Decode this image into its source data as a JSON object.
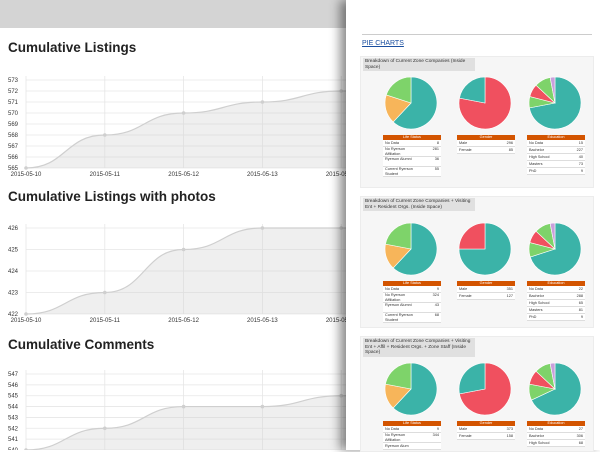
{
  "left_page": {
    "charts": [
      {
        "title": "Cumulative Listings",
        "chart_data": {
          "type": "line",
          "x": [
            "2015-05-10",
            "2015-05-11",
            "2015-05-12",
            "2015-05-13",
            "2015-05-14",
            "2015-05-15"
          ],
          "series": [
            {
              "values": [
                565,
                568,
                570,
                571,
                572,
                572
              ]
            }
          ],
          "xtick_labels": [
            "2015-05-10",
            "2015-05-11",
            "2015-05-12",
            "2015-05-13",
            "2015-05-14"
          ],
          "yticks": [
            "573",
            "572",
            "571",
            "570",
            "569",
            "568",
            "567",
            "566",
            "565"
          ],
          "ylim": [
            565,
            573
          ],
          "grid": true
        }
      },
      {
        "title": "Cumulative Listings with photos",
        "chart_data": {
          "type": "line",
          "x": [
            "2015-05-10",
            "2015-05-11",
            "2015-05-12",
            "2015-05-13",
            "2015-05-14",
            "2015-05-15"
          ],
          "series": [
            {
              "values": [
                422,
                423,
                425,
                426,
                426,
                426
              ]
            }
          ],
          "xtick_labels": [
            "2015-05-10",
            "2015-05-11",
            "2015-05-12",
            "2015-05-13",
            "2015-05-14"
          ],
          "yticks": [
            "426",
            "425",
            "424",
            "423",
            "422"
          ],
          "ylim": [
            422,
            426
          ],
          "grid": true
        }
      },
      {
        "title": "Cumulative Comments",
        "chart_data": {
          "type": "line",
          "x": [
            "2015-05-10",
            "2015-05-11",
            "2015-05-12",
            "2015-05-13",
            "2015-05-14",
            "2015-05-15"
          ],
          "series": [
            {
              "values": [
                540,
                542,
                544,
                544,
                545,
                545
              ]
            }
          ],
          "xtick_labels": [],
          "yticks": [
            "547",
            "546",
            "545",
            "544",
            "543",
            "542",
            "541",
            "540"
          ],
          "ylim": [
            540,
            547
          ],
          "grid": true
        }
      }
    ]
  },
  "right_page": {
    "heading": "PIE CHARTS",
    "panels": [
      {
        "title": "Breakdown of Current Zone Companies (Inside Space)",
        "pies": [
          {
            "slices": [
              {
                "value": 62,
                "color": "#3bb3a8"
              },
              {
                "value": 18,
                "color": "#f7b55a"
              },
              {
                "value": 20,
                "color": "#7ed36a"
              }
            ]
          },
          {
            "slices": [
              {
                "value": 78,
                "color": "#f0505f"
              },
              {
                "value": 22,
                "color": "#3bb3a8"
              }
            ]
          },
          {
            "slices": [
              {
                "value": 72,
                "color": "#3bb3a8"
              },
              {
                "value": 7,
                "color": "#7ed36a"
              },
              {
                "value": 8,
                "color": "#f0505f"
              },
              {
                "value": 10,
                "color": "#7ed36a"
              },
              {
                "value": 3,
                "color": "#c9a0dc"
              }
            ]
          }
        ],
        "tables": [
          {
            "header": "Life Status",
            "rows": [
              [
                "No Data",
                "8"
              ],
              [
                "No Ryerson Affiliation",
                "281"
              ],
              [
                "Ryerson Alumni",
                "36"
              ],
              [
                "Current Ryerson Student",
                "55"
              ]
            ]
          },
          {
            "header": "Gender",
            "rows": [
              [
                "Male",
                "296"
              ],
              [
                "Female",
                "85"
              ]
            ]
          },
          {
            "header": "Education",
            "rows": [
              [
                "No Data",
                "15"
              ],
              [
                "Bachelor",
                "227"
              ],
              [
                "High School",
                "40"
              ],
              [
                "Masters",
                "73"
              ],
              [
                "PhD",
                "9"
              ]
            ]
          }
        ]
      },
      {
        "title": "Breakdown of Current Zone Companies + Visiting Ent + Resident Orgs. (Inside Space)",
        "pies": [
          {
            "slices": [
              {
                "value": 62,
                "color": "#3bb3a8"
              },
              {
                "value": 16,
                "color": "#f7b55a"
              },
              {
                "value": 22,
                "color": "#7ed36a"
              }
            ]
          },
          {
            "slices": [
              {
                "value": 75,
                "color": "#3bb3a8"
              },
              {
                "value": 25,
                "color": "#f0505f"
              }
            ]
          },
          {
            "slices": [
              {
                "value": 70,
                "color": "#3bb3a8"
              },
              {
                "value": 9,
                "color": "#7ed36a"
              },
              {
                "value": 8,
                "color": "#f0505f"
              },
              {
                "value": 10,
                "color": "#7ed36a"
              },
              {
                "value": 3,
                "color": "#c9a0dc"
              }
            ]
          }
        ],
        "tables": [
          {
            "header": "Life Status",
            "rows": [
              [
                "No Data",
                "9"
              ],
              [
                "No Ryerson Affiliation",
                "324"
              ],
              [
                "Ryerson Alumni",
                "43"
              ],
              [
                "Current Ryerson Student",
                "68"
              ]
            ]
          },
          {
            "header": "Gender",
            "rows": [
              [
                "Male",
                "351"
              ],
              [
                "Female",
                "127"
              ]
            ]
          },
          {
            "header": "Education",
            "rows": [
              [
                "No Data",
                "22"
              ],
              [
                "Bachelor",
                "288"
              ],
              [
                "High School",
                "65"
              ],
              [
                "Masters",
                "81"
              ],
              [
                "PhD",
                "9"
              ]
            ]
          }
        ]
      },
      {
        "title": "Breakdown of Current Zone Companies + Visiting Ent + Affil + Resident Orgs. + Zone Staff (Inside Space)",
        "pies": [
          {
            "slices": [
              {
                "value": 62,
                "color": "#3bb3a8"
              },
              {
                "value": 16,
                "color": "#f7b55a"
              },
              {
                "value": 22,
                "color": "#7ed36a"
              }
            ]
          },
          {
            "slices": [
              {
                "value": 72,
                "color": "#f0505f"
              },
              {
                "value": 28,
                "color": "#3bb3a8"
              }
            ]
          },
          {
            "slices": [
              {
                "value": 68,
                "color": "#3bb3a8"
              },
              {
                "value": 10,
                "color": "#7ed36a"
              },
              {
                "value": 9,
                "color": "#f0505f"
              },
              {
                "value": 10,
                "color": "#7ed36a"
              },
              {
                "value": 3,
                "color": "#c9a0dc"
              }
            ]
          }
        ],
        "tables": [
          {
            "header": "Life Status",
            "rows": [
              [
                "No Data",
                "9"
              ],
              [
                "No Ryerson Affiliation",
                "344"
              ],
              [
                "Ryerson Alum",
                ""
              ]
            ]
          },
          {
            "header": "Gender",
            "rows": [
              [
                "Male",
                "373"
              ],
              [
                "Female",
                "158"
              ]
            ]
          },
          {
            "header": "Education",
            "rows": [
              [
                "No Data",
                "27"
              ],
              [
                "Bachelor",
                "306"
              ],
              [
                "High School",
                "68"
              ]
            ]
          }
        ]
      }
    ]
  }
}
